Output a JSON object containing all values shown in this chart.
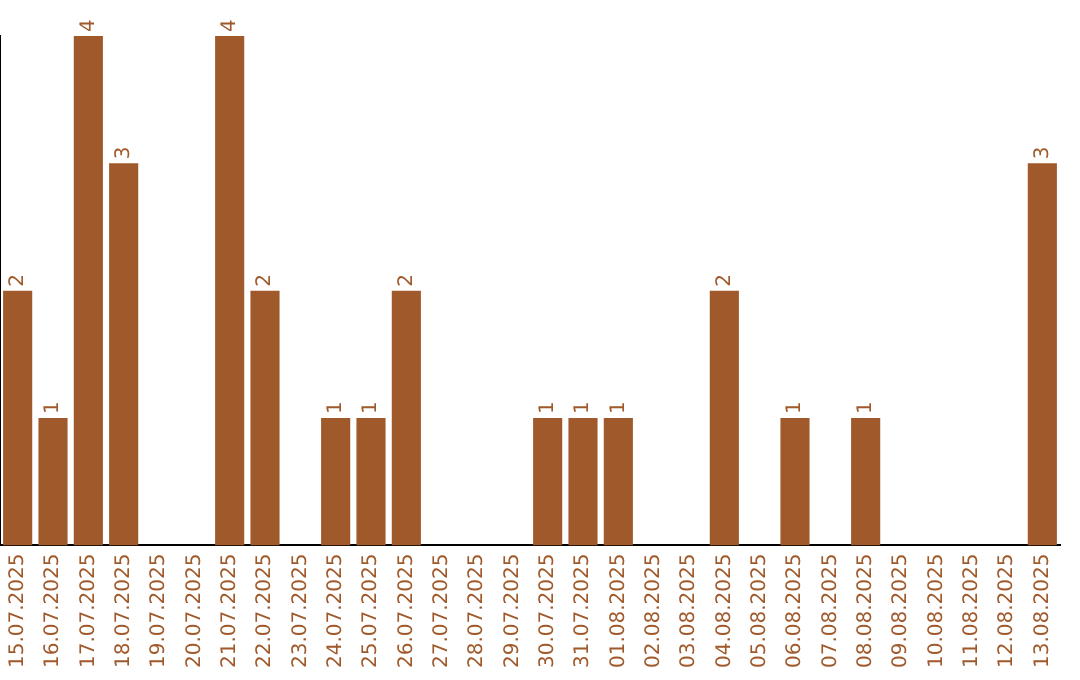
{
  "chart_data": {
    "type": "bar",
    "categories": [
      "15.07.2025",
      "16.07.2025",
      "17.07.2025",
      "18.07.2025",
      "19.07.2025",
      "20.07.2025",
      "21.07.2025",
      "22.07.2025",
      "23.07.2025",
      "24.07.2025",
      "25.07.2025",
      "26.07.2025",
      "27.07.2025",
      "28.07.2025",
      "29.07.2025",
      "30.07.2025",
      "31.07.2025",
      "01.08.2025",
      "02.08.2025",
      "03.08.2025",
      "04.08.2025",
      "05.08.2025",
      "06.08.2025",
      "07.08.2025",
      "08.08.2025",
      "09.08.2025",
      "10.08.2025",
      "11.08.2025",
      "12.08.2025",
      "13.08.2025"
    ],
    "values": [
      2,
      1,
      4,
      3,
      0,
      0,
      4,
      2,
      0,
      1,
      1,
      2,
      0,
      0,
      0,
      1,
      1,
      1,
      0,
      0,
      2,
      0,
      1,
      0,
      1,
      0,
      0,
      0,
      0,
      3
    ],
    "value_labels": [
      "2",
      "1",
      "4",
      "3",
      null,
      null,
      "4",
      "2",
      null,
      "1",
      "1",
      "2",
      null,
      null,
      null,
      "1",
      "1",
      "1",
      null,
      null,
      "2",
      null,
      "1",
      null,
      "1",
      null,
      null,
      null,
      null,
      "3"
    ],
    "color": "#a0592a",
    "tick_labels": "x",
    "grid": false,
    "legend": false
  }
}
